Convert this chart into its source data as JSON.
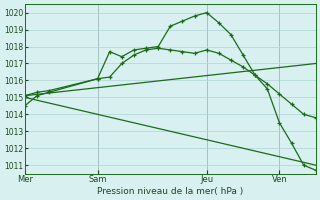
{
  "xlabel": "Pression niveau de la mer( hPa )",
  "bg_color": "#d8f0f0",
  "grid_color": "#aed4d4",
  "line_color": "#1a6b1a",
  "vline_color": "#888888",
  "ylim": [
    1010.5,
    1020.5
  ],
  "yticks": [
    1011,
    1012,
    1013,
    1014,
    1015,
    1016,
    1017,
    1018,
    1019,
    1020
  ],
  "xtick_labels": [
    "Mer",
    "Sam",
    "Jeu",
    "Ven"
  ],
  "xtick_positions": [
    0,
    24,
    60,
    84
  ],
  "xlim": [
    0,
    96
  ],
  "line1_x": [
    0,
    4,
    8,
    24,
    28,
    32,
    36,
    40,
    44,
    48,
    52,
    56,
    60,
    64,
    68,
    72,
    76,
    80,
    84,
    88,
    92,
    96
  ],
  "line1_y": [
    1014.5,
    1015.1,
    1015.3,
    1016.1,
    1017.7,
    1017.4,
    1017.8,
    1017.9,
    1018.0,
    1019.2,
    1019.5,
    1019.8,
    1020.0,
    1019.4,
    1018.7,
    1017.5,
    1016.3,
    1015.5,
    1013.5,
    1012.3,
    1011.0,
    1010.7
  ],
  "line2_x": [
    0,
    4,
    8,
    24,
    28,
    32,
    36,
    40,
    44,
    48,
    52,
    56,
    60,
    64,
    68,
    72,
    76,
    80,
    84,
    88,
    92,
    96
  ],
  "line2_y": [
    1015.1,
    1015.3,
    1015.4,
    1016.1,
    1016.2,
    1017.0,
    1017.5,
    1017.8,
    1017.9,
    1017.8,
    1017.7,
    1017.6,
    1017.8,
    1017.6,
    1017.2,
    1016.8,
    1016.3,
    1015.8,
    1015.2,
    1014.6,
    1014.0,
    1013.8
  ],
  "line3_x": [
    0,
    96
  ],
  "line3_y": [
    1015.1,
    1017.0
  ],
  "line4_x": [
    0,
    96
  ],
  "line4_y": [
    1015.0,
    1011.0
  ]
}
